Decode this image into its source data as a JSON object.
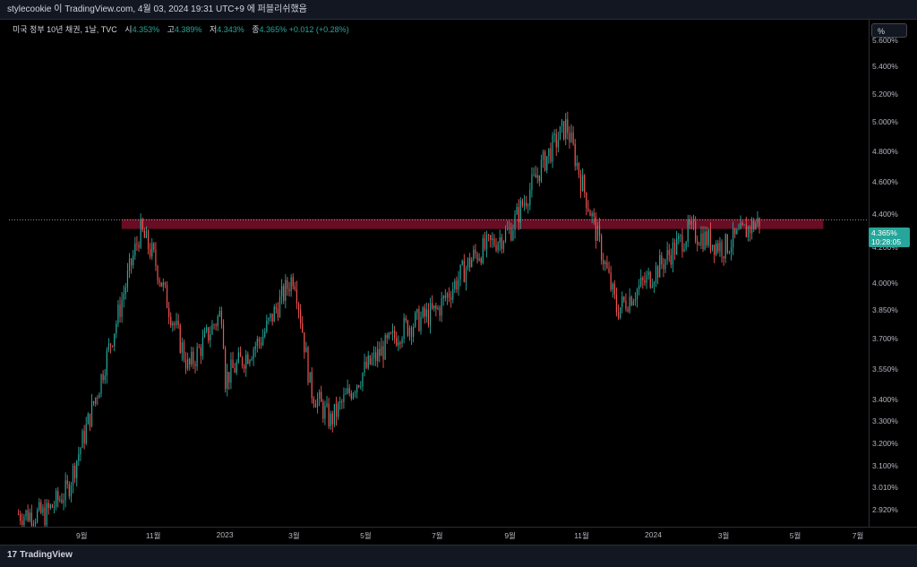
{
  "topbar": {
    "text": "stylecookie 이 TradingView.com, 4월 03, 2024 19:31 UTC+9 에 퍼블리쉬했음"
  },
  "legend": {
    "symbol": "미국 정부 10년 채권, 1날, TVC",
    "open_label": "시",
    "open": "4.353%",
    "high_label": "고",
    "high": "4.389%",
    "low_label": "저",
    "low": "4.343%",
    "close_label": "종",
    "close": "4.365%",
    "change": "+0.012 (+0.28%)"
  },
  "price_scale": {
    "mode_button": "%",
    "last_price": "4.365%",
    "countdown": "10:28:05",
    "ticks": [
      "5.600%",
      "5.400%",
      "5.200%",
      "5.000%",
      "4.800%",
      "4.600%",
      "4.400%",
      "4.200%",
      "4.000%",
      "3.850%",
      "3.700%",
      "3.550%",
      "3.400%",
      "3.300%",
      "3.200%",
      "3.100%",
      "3.010%",
      "2.920%"
    ]
  },
  "time_scale": {
    "ticks": [
      "9월",
      "11월",
      "2023",
      "3월",
      "5월",
      "7월",
      "9월",
      "11월",
      "2024",
      "3월",
      "5월",
      "7월"
    ]
  },
  "footer": {
    "brand": "TradingView"
  },
  "colors": {
    "up": "#26a69a",
    "down": "#ef5350",
    "zone": "#7a0f2a",
    "background": "#000000"
  },
  "chart_data": {
    "type": "candlestick",
    "title": "미국 정부 10년 채권, 1날, TVC",
    "x_range": [
      "2022-07",
      "2024-07"
    ],
    "y_range": [
      2.85,
      5.75
    ],
    "y_scale": "log",
    "last_price": 4.365,
    "resistance_zone": [
      4.31,
      4.37
    ],
    "close_path": [
      {
        "date": "2022-08",
        "value": 2.9
      },
      {
        "date": "2022-08-20",
        "value": 3.0
      },
      {
        "date": "2022-09",
        "value": 3.2
      },
      {
        "date": "2022-09-15",
        "value": 3.45
      },
      {
        "date": "2022-10",
        "value": 3.8
      },
      {
        "date": "2022-10-21",
        "value": 4.3
      },
      {
        "date": "2022-11",
        "value": 4.15
      },
      {
        "date": "2022-11-15",
        "value": 3.85
      },
      {
        "date": "2022-12",
        "value": 3.55
      },
      {
        "date": "2022-12-30",
        "value": 3.85
      },
      {
        "date": "2023-01",
        "value": 3.5
      },
      {
        "date": "2023-02",
        "value": 3.7
      },
      {
        "date": "2023-03",
        "value": 4.05
      },
      {
        "date": "2023-03-15",
        "value": 3.45
      },
      {
        "date": "2023-04",
        "value": 3.3
      },
      {
        "date": "2023-05",
        "value": 3.55
      },
      {
        "date": "2023-06",
        "value": 3.75
      },
      {
        "date": "2023-07",
        "value": 3.85
      },
      {
        "date": "2023-08",
        "value": 4.15
      },
      {
        "date": "2023-09",
        "value": 4.3
      },
      {
        "date": "2023-10",
        "value": 4.75
      },
      {
        "date": "2023-10-19",
        "value": 4.98
      },
      {
        "date": "2023-11",
        "value": 4.6
      },
      {
        "date": "2023-12",
        "value": 3.85
      },
      {
        "date": "2024-01",
        "value": 4.05
      },
      {
        "date": "2024-02",
        "value": 4.3
      },
      {
        "date": "2024-03",
        "value": 4.2
      },
      {
        "date": "2024-04",
        "value": 4.365
      }
    ]
  }
}
